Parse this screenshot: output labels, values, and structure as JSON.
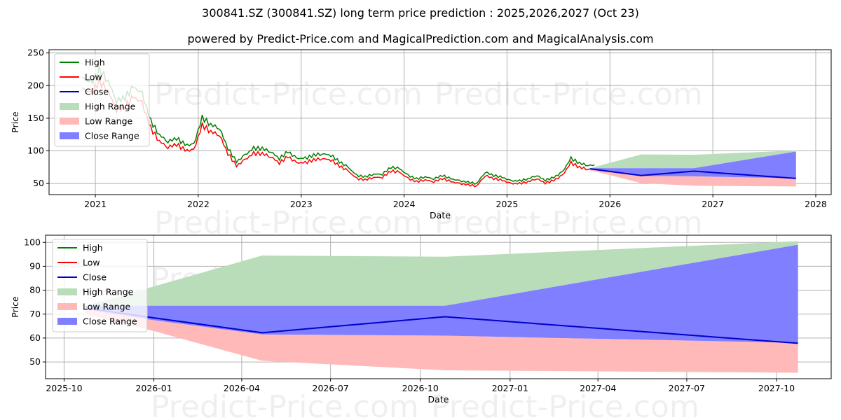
{
  "title": "300841.SZ (300841.SZ) long term price prediction : 2025,2026,2027 (Oct 23)",
  "subtitle": "powered by Predict-Price.com and MagicalPrediction.com and MagicalAnalysis.com",
  "watermark": "Predict-Price.com",
  "colors": {
    "high": "#008000",
    "low": "#ff0000",
    "close": "#0000cc",
    "high_range": "#b9dcb9",
    "low_range": "#ffb9b9",
    "close_range": "#7f7fff"
  },
  "legend": [
    "High",
    "Low",
    "Close",
    "High Range",
    "Low Range",
    "Close Range"
  ],
  "chart_data": [
    {
      "type": "line",
      "xlabel": "Date",
      "ylabel": "Price",
      "xlim": [
        2020.55,
        2028.15
      ],
      "ylim": [
        33,
        255
      ],
      "xticks": [
        "2021",
        "2022",
        "2023",
        "2024",
        "2025",
        "2026",
        "2027",
        "2028"
      ],
      "yticks": [
        50,
        100,
        150,
        200,
        250
      ],
      "grid": true,
      "legend_position": "top-left",
      "history": {
        "start": "2020-11",
        "close": [
          205,
          195,
          215,
          200,
          170,
          175,
          190,
          180,
          140,
          120,
          110,
          115,
          105,
          105,
          145,
          135,
          130,
          100,
          80,
          90,
          100,
          100,
          95,
          85,
          95,
          85,
          85,
          90,
          92,
          90,
          80,
          72,
          60,
          58,
          62,
          62,
          72,
          70,
          60,
          55,
          58,
          55,
          60,
          55,
          52,
          50,
          48,
          65,
          60,
          57,
          52,
          52,
          55,
          60,
          53,
          57,
          65,
          85,
          78,
          75
        ],
        "high_pct": 4,
        "low_pct": -4
      },
      "forecast": {
        "dates": [
          "2025-10-23",
          "2025-12-31",
          "2026-04-22",
          "2026-10-26",
          "2027-10-23"
        ],
        "close": [
          72.5,
          68.5,
          62.2,
          68.9,
          57.8
        ],
        "high_range": [
          [
            73,
            73.5
          ],
          [
            73.5,
            81.5
          ],
          [
            73.5,
            94.5
          ],
          [
            73.5,
            94
          ],
          [
            99,
            100.5
          ]
        ],
        "close_range": [
          [
            72,
            73.5
          ],
          [
            67.5,
            73.5
          ],
          [
            61.5,
            73.5
          ],
          [
            61,
            73.5
          ],
          [
            58,
            99
          ]
        ],
        "low_range": [
          [
            70,
            72
          ],
          [
            63,
            67.5
          ],
          [
            50.5,
            61.5
          ],
          [
            46.5,
            61
          ],
          [
            45.5,
            58
          ]
        ]
      }
    },
    {
      "type": "line",
      "xlabel": "Date",
      "ylabel": "Price",
      "xlim": [
        "2025-09-12",
        "2027-11-26"
      ],
      "ylim": [
        43,
        103
      ],
      "xticks": [
        "2025-10",
        "2026-01",
        "2026-04",
        "2026-07",
        "2026-10",
        "2027-01",
        "2027-04",
        "2027-07",
        "2027-10"
      ],
      "yticks": [
        50,
        60,
        70,
        80,
        90,
        100
      ],
      "grid": true,
      "legend_position": "top-left"
    }
  ]
}
